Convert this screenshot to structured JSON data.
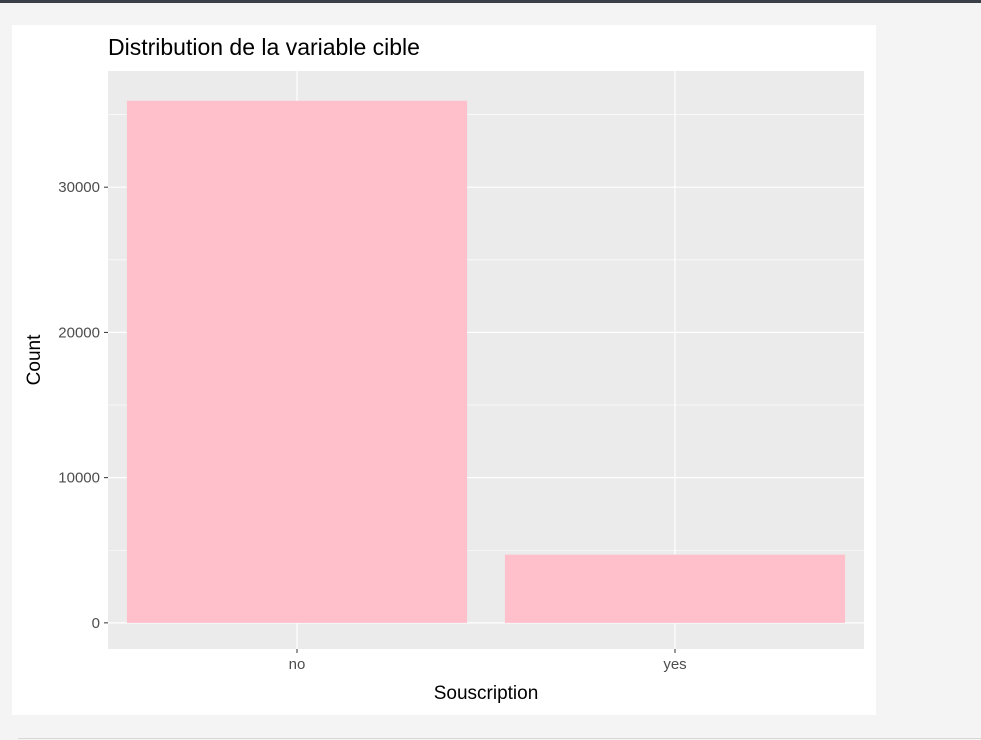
{
  "chart_data": {
    "type": "bar",
    "title": "Distribution de la variable cible",
    "xlabel": "Souscription",
    "ylabel": "Count",
    "categories": [
      "no",
      "yes"
    ],
    "values": [
      35950,
      4700
    ],
    "ylim": [
      -1800,
      38000
    ],
    "yticks": [
      0,
      10000,
      20000,
      30000
    ],
    "ytick_labels": [
      "0",
      "10000",
      "20000",
      "30000"
    ],
    "grid": true,
    "legend": "none",
    "colors": {
      "bar_fill": "#ffc0cb",
      "panel_background": "#ebebeb",
      "grid_line": "#ffffff",
      "tick_text": "#4d4d4d",
      "tick_mark": "#333333",
      "text": "#000000"
    }
  }
}
